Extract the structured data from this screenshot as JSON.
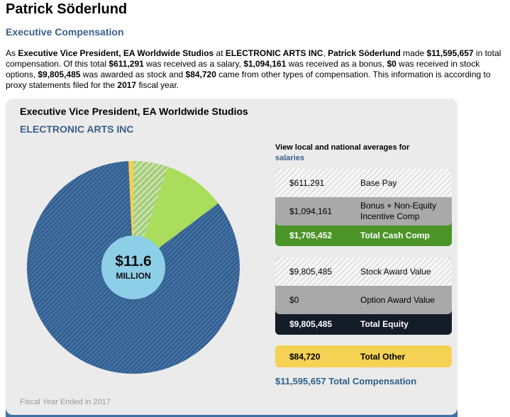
{
  "page": {
    "title": "Patrick Söderlund",
    "section_heading": "Executive Compensation"
  },
  "colors": {
    "accent": "#3a5f8a",
    "cash_total": "#4a9428",
    "equity_total": "#141c28",
    "other": "#f5d154",
    "gray_row": "#a9a9a9",
    "inner_circle": "#8ecfe8"
  },
  "summary": {
    "segments": [
      {
        "text": "As ",
        "bold": false
      },
      {
        "text": "Executive Vice President, EA Worldwide Studios",
        "bold": true
      },
      {
        "text": " at ",
        "bold": false
      },
      {
        "text": "ELECTRONIC ARTS INC",
        "bold": true
      },
      {
        "text": ", ",
        "bold": false
      },
      {
        "text": "Patrick Söderlund",
        "bold": true
      },
      {
        "text": " made ",
        "bold": false
      },
      {
        "text": "$11,595,657",
        "bold": true
      },
      {
        "text": " in total compensation. Of this total ",
        "bold": false
      },
      {
        "text": "$611,291",
        "bold": true
      },
      {
        "text": " was received as a salary, ",
        "bold": false
      },
      {
        "text": "$1,094,161",
        "bold": true
      },
      {
        "text": " was received as a bonus, ",
        "bold": false
      },
      {
        "text": "$0",
        "bold": true
      },
      {
        "text": " was received in stock options, ",
        "bold": false
      },
      {
        "text": "$9,805,485",
        "bold": true
      },
      {
        "text": " was awarded as stock and ",
        "bold": false
      },
      {
        "text": "$84,720",
        "bold": true
      },
      {
        "text": " came from other types of compensation. This information is according to proxy statements filed for the ",
        "bold": false
      },
      {
        "text": "2017",
        "bold": true
      },
      {
        "text": " fiscal year.",
        "bold": false
      }
    ]
  },
  "card": {
    "job_title": "Executive Vice President, EA Worldwide Studios",
    "company": "ELECTRONIC ARTS INC",
    "fiscal_note": "Fiscal Year Ended in 2017"
  },
  "breakdown": {
    "prompt": "View local and national averages for",
    "link": "salaries",
    "cash": {
      "rows": [
        {
          "value": "$611,291",
          "label": "Base Pay"
        },
        {
          "value": "$1,094,161",
          "label": "Bonus + Non-Equity Incentive Comp"
        }
      ],
      "total": {
        "value": "$1,705,452",
        "label": "Total Cash Comp"
      }
    },
    "equity": {
      "rows": [
        {
          "value": "$9,805,485",
          "label": "Stock Award Value"
        },
        {
          "value": "$0",
          "label": "Option Award Value"
        }
      ],
      "total": {
        "value": "$9,805,485",
        "label": "Total Equity"
      }
    },
    "other": {
      "value": "$84,720",
      "label": "Total Other"
    },
    "total_compensation": {
      "value": "$11,595,657",
      "label": "Total Compensation"
    }
  },
  "chart_data": {
    "type": "pie",
    "title": "",
    "start": "top",
    "direction": "clockwise",
    "center_label": {
      "value": "$11.6",
      "unit": "MILLION"
    },
    "total": 11595657,
    "slices": [
      {
        "key": "base-pay",
        "name": "Base Pay",
        "value": 611291,
        "color": "#c6e2a0",
        "stripe_color": "#9cc47c",
        "fill": "hatched"
      },
      {
        "key": "bonus",
        "name": "Bonus + Non-Equity Incentive Comp",
        "value": 1094161,
        "color": "#a9dd5b",
        "fill": "solid"
      },
      {
        "key": "stock-award",
        "name": "Stock Award Value",
        "value": 9805485,
        "color": "#4272a6",
        "stripe_color": "#2f5784",
        "fill": "hatched"
      },
      {
        "key": "option-award",
        "name": "Option Award Value",
        "value": 0,
        "color": "#a9a9a9",
        "fill": "solid"
      },
      {
        "key": "other",
        "name": "Total Other",
        "value": 84720,
        "color": "#f5cf4f",
        "fill": "solid"
      }
    ]
  }
}
